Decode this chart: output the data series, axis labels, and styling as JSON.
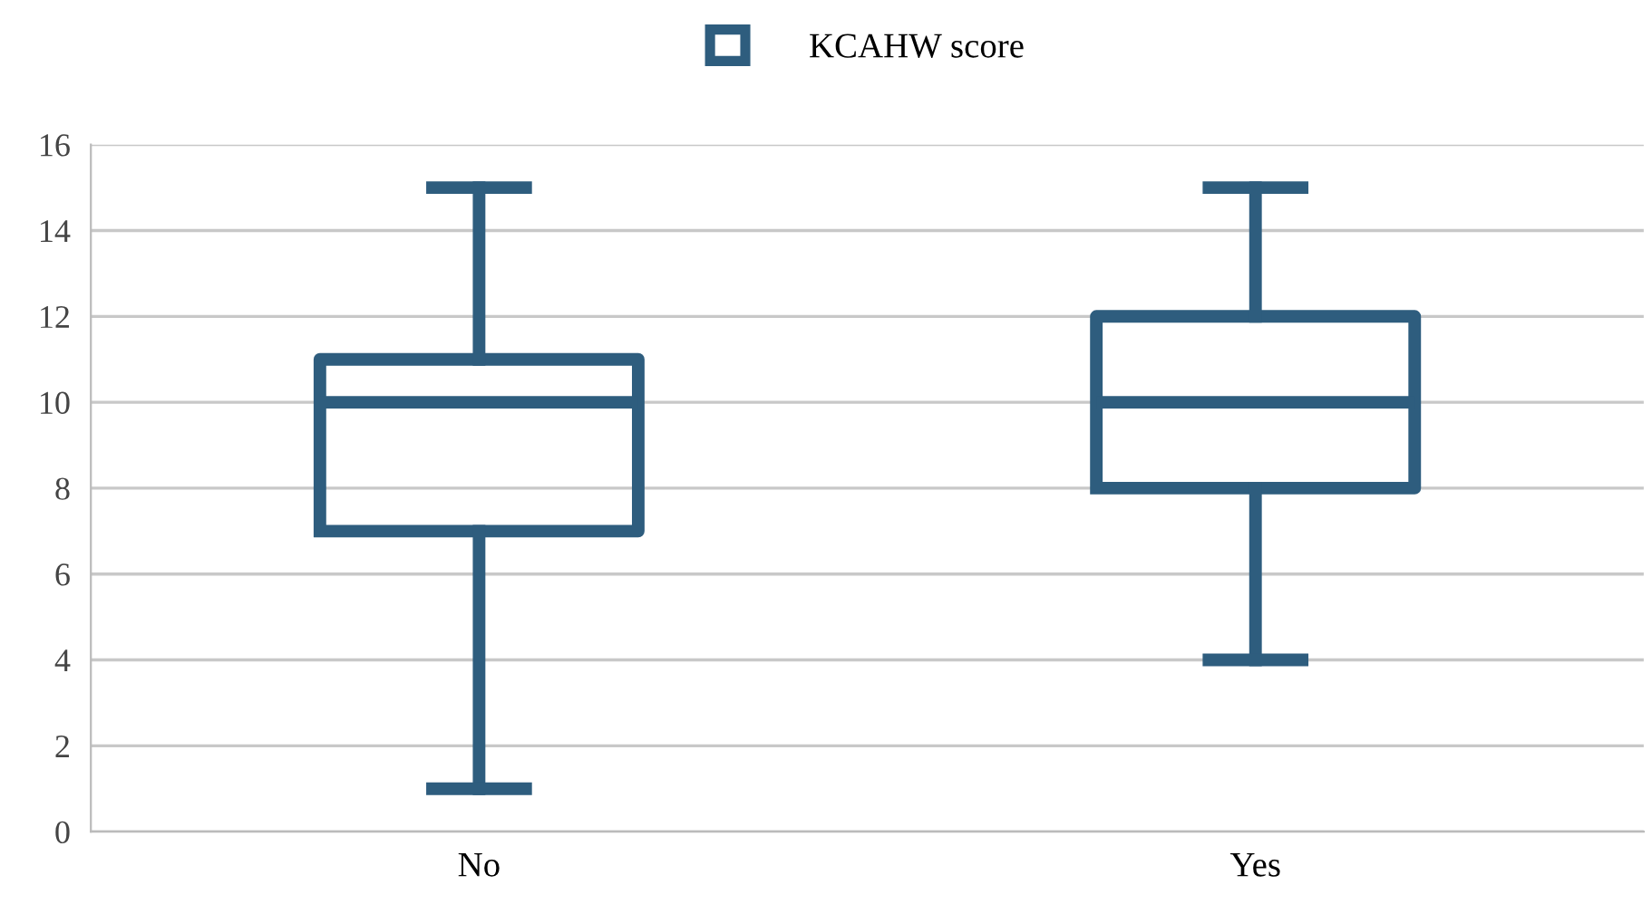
{
  "chart_data": {
    "type": "box",
    "categories": [
      "No",
      "Yes"
    ],
    "series": [
      {
        "name": "KCAHW score",
        "color": "#2e5d7e",
        "boxes": [
          {
            "low": 1,
            "q1": 7,
            "median": 10,
            "q3": 11,
            "high": 15
          },
          {
            "low": 4,
            "q1": 8,
            "median": 10,
            "q3": 12,
            "high": 15
          }
        ]
      }
    ],
    "ylim": [
      0,
      16
    ],
    "yticks": [
      0,
      2,
      4,
      6,
      8,
      10,
      12,
      14,
      16
    ],
    "grid": "y",
    "legend": "top"
  }
}
